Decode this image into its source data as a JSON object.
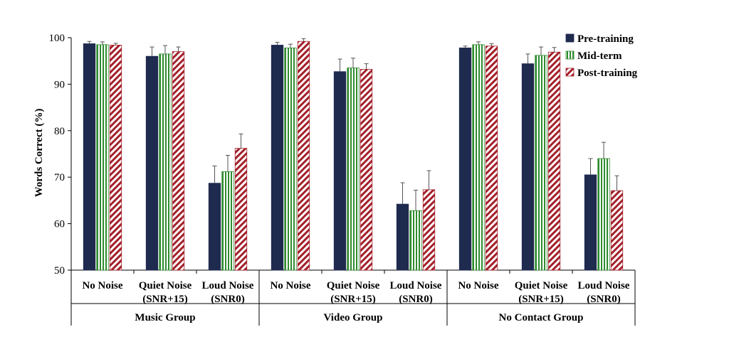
{
  "chart_data": {
    "type": "bar",
    "title": "",
    "ylabel": "Words Correct (%)",
    "ylim": [
      50,
      100
    ],
    "yticks": [
      50,
      60,
      70,
      80,
      90,
      100
    ],
    "grid": false,
    "legend_position": "top-right",
    "groups": [
      {
        "label": "Music Group",
        "conditions": [
          "No Noise",
          "Quiet Noise\n(SNR+15)",
          "Loud Noise\n(SNR0)"
        ]
      },
      {
        "label": "Video Group",
        "conditions": [
          "No Noise",
          "Quiet Noise\n(SNR+15)",
          "Loud Noise\n(SNR0)"
        ]
      },
      {
        "label": "No Contact Group",
        "conditions": [
          "No Noise",
          "Quiet Noise\n(SNR+15)",
          "Loud Noise\n(SNR0)"
        ]
      }
    ],
    "series": [
      {
        "name": "Pre-training",
        "color": "#1f2a4f",
        "pattern": "solid",
        "values": [
          98.7,
          96.0,
          68.7,
          98.4,
          92.7,
          64.2,
          97.8,
          94.4,
          70.5
        ],
        "errors": [
          0.5,
          2.0,
          3.7,
          0.6,
          2.7,
          4.6,
          0.4,
          2.1,
          3.5
        ]
      },
      {
        "name": "Mid-term",
        "color": "#2e8b2e",
        "pattern": "vertical-stripes",
        "values": [
          98.5,
          96.5,
          71.2,
          97.8,
          93.5,
          62.8,
          98.5,
          96.2,
          74.0
        ],
        "errors": [
          0.6,
          1.8,
          3.5,
          0.8,
          2.1,
          4.4,
          0.6,
          1.8,
          3.5
        ]
      },
      {
        "name": "Post-training",
        "color": "#a3202a",
        "pattern": "diagonal-stripes",
        "values": [
          98.4,
          97.0,
          76.2,
          99.2,
          93.2,
          67.3,
          98.2,
          96.9,
          67.1
        ],
        "errors": [
          0.4,
          1.0,
          3.1,
          0.6,
          1.2,
          4.1,
          0.5,
          1.0,
          3.2
        ]
      }
    ]
  }
}
